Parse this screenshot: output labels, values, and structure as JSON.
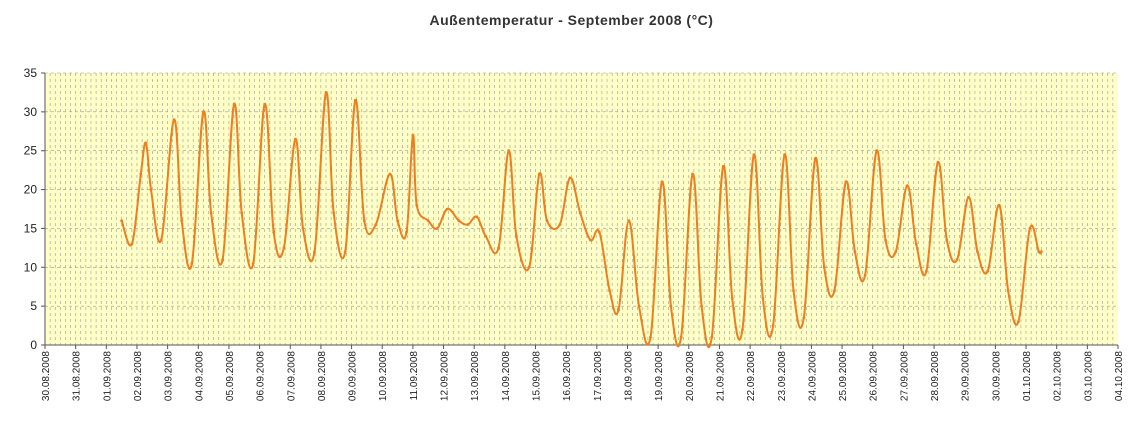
{
  "chart_data": {
    "type": "line",
    "title": "Außentemperatur - September 2008 (°C)",
    "xlabel": "",
    "ylabel": "",
    "ylim": [
      0,
      35
    ],
    "yticks": [
      0,
      5,
      10,
      15,
      20,
      25,
      30,
      35
    ],
    "grid": true,
    "legend": "none",
    "colors": {
      "plot_bg": "#ffffc8",
      "line": "#f07d1e",
      "grid": "#999999"
    },
    "categories": [
      "30.08.2008",
      "31.08.2008",
      "01.09.2008",
      "02.09.2008",
      "03.09.2008",
      "04.09.2008",
      "05.09.2008",
      "06.09.2008",
      "07.09.2008",
      "08.09.2008",
      "09.09.2008",
      "10.09.2008",
      "11.09.2008",
      "12.09.2008",
      "13.09.2008",
      "14.09.2008",
      "15.09.2008",
      "16.09.2008",
      "17.09.2008",
      "18.09.2008",
      "19.09.2008",
      "20.09.2008",
      "21.09.2008",
      "22.09.2008",
      "23.09.2008",
      "24.09.2008",
      "25.09.2008",
      "26.09.2008",
      "27.09.2008",
      "28.09.2008",
      "29.09.2008",
      "30.09.2008",
      "01.10.2008",
      "02.10.2008",
      "03.10.2008",
      "04.10.2008"
    ],
    "series": [
      {
        "points": [
          [
            "01.09.2008 12:00",
            16.0
          ],
          [
            "01.09.2008 20:00",
            13.0
          ],
          [
            "02.09.2008 03:00",
            22.0
          ],
          [
            "02.09.2008 07:00",
            26.0
          ],
          [
            "02.09.2008 11:00",
            20.0
          ],
          [
            "02.09.2008 19:00",
            13.5
          ],
          [
            "03.09.2008 05:00",
            29.0
          ],
          [
            "03.09.2008 11:00",
            16.0
          ],
          [
            "03.09.2008 19:00",
            10.5
          ],
          [
            "04.09.2008 04:00",
            30.0
          ],
          [
            "04.09.2008 10:00",
            17.0
          ],
          [
            "04.09.2008 19:00",
            11.0
          ],
          [
            "05.09.2008 04:00",
            31.0
          ],
          [
            "05.09.2008 10:00",
            17.0
          ],
          [
            "05.09.2008 19:00",
            10.5
          ],
          [
            "06.09.2008 04:00",
            31.0
          ],
          [
            "06.09.2008 11:00",
            14.5
          ],
          [
            "06.09.2008 19:00",
            12.5
          ],
          [
            "07.09.2008 04:00",
            26.5
          ],
          [
            "07.09.2008 10:00",
            15.0
          ],
          [
            "07.09.2008 19:00",
            12.0
          ],
          [
            "08.09.2008 04:00",
            32.5
          ],
          [
            "08.09.2008 10:00",
            17.0
          ],
          [
            "08.09.2008 19:00",
            12.0
          ],
          [
            "09.09.2008 03:00",
            31.5
          ],
          [
            "09.09.2008 10:00",
            16.0
          ],
          [
            "09.09.2008 19:00",
            15.5
          ],
          [
            "10.09.2008 06:00",
            22.0
          ],
          [
            "10.09.2008 12:00",
            16.0
          ],
          [
            "10.09.2008 19:00",
            14.5
          ],
          [
            "11.09.2008 00:00",
            27.0
          ],
          [
            "11.09.2008 03:00",
            18.0
          ],
          [
            "11.09.2008 12:00",
            16.0
          ],
          [
            "11.09.2008 19:00",
            15.0
          ],
          [
            "12.09.2008 03:00",
            17.5
          ],
          [
            "12.09.2008 12:00",
            16.0
          ],
          [
            "12.09.2008 19:00",
            15.5
          ],
          [
            "13.09.2008 02:00",
            16.5
          ],
          [
            "13.09.2008 09:00",
            14.0
          ],
          [
            "13.09.2008 19:00",
            12.5
          ],
          [
            "14.09.2008 03:00",
            25.0
          ],
          [
            "14.09.2008 09:00",
            14.0
          ],
          [
            "14.09.2008 19:00",
            10.0
          ],
          [
            "15.09.2008 03:00",
            22.0
          ],
          [
            "15.09.2008 09:00",
            16.0
          ],
          [
            "15.09.2008 19:00",
            15.5
          ],
          [
            "16.09.2008 03:00",
            21.5
          ],
          [
            "16.09.2008 11:00",
            17.0
          ],
          [
            "16.09.2008 19:00",
            13.5
          ],
          [
            "17.09.2008 02:00",
            14.5
          ],
          [
            "17.09.2008 10:00",
            7.0
          ],
          [
            "17.09.2008 17:00",
            4.5
          ],
          [
            "18.09.2008 01:00",
            16.0
          ],
          [
            "18.09.2008 09:00",
            5.0
          ],
          [
            "18.09.2008 18:00",
            1.0
          ],
          [
            "19.09.2008 03:00",
            21.0
          ],
          [
            "19.09.2008 10:00",
            5.0
          ],
          [
            "19.09.2008 18:00",
            1.0
          ],
          [
            "20.09.2008 03:00",
            22.0
          ],
          [
            "20.09.2008 10:00",
            5.0
          ],
          [
            "20.09.2008 18:00",
            1.0
          ],
          [
            "21.09.2008 03:00",
            23.0
          ],
          [
            "21.09.2008 10:00",
            6.0
          ],
          [
            "21.09.2008 18:00",
            2.0
          ],
          [
            "22.09.2008 03:00",
            24.5
          ],
          [
            "22.09.2008 10:00",
            6.0
          ],
          [
            "22.09.2008 18:00",
            2.5
          ],
          [
            "23.09.2008 03:00",
            24.5
          ],
          [
            "23.09.2008 10:00",
            7.0
          ],
          [
            "23.09.2008 18:00",
            3.5
          ],
          [
            "24.09.2008 03:00",
            24.0
          ],
          [
            "24.09.2008 10:00",
            10.0
          ],
          [
            "24.09.2008 18:00",
            7.0
          ],
          [
            "25.09.2008 03:00",
            21.0
          ],
          [
            "25.09.2008 10:00",
            12.0
          ],
          [
            "25.09.2008 18:00",
            9.0
          ],
          [
            "26.09.2008 03:00",
            25.0
          ],
          [
            "26.09.2008 10:00",
            13.5
          ],
          [
            "26.09.2008 18:00",
            12.0
          ],
          [
            "27.09.2008 03:00",
            20.5
          ],
          [
            "27.09.2008 10:00",
            13.0
          ],
          [
            "27.09.2008 18:00",
            9.5
          ],
          [
            "28.09.2008 03:00",
            23.5
          ],
          [
            "28.09.2008 10:00",
            13.5
          ],
          [
            "28.09.2008 18:00",
            11.0
          ],
          [
            "29.09.2008 03:00",
            19.0
          ],
          [
            "29.09.2008 10:00",
            12.0
          ],
          [
            "29.09.2008 18:00",
            9.5
          ],
          [
            "30.09.2008 03:00",
            18.0
          ],
          [
            "30.09.2008 10:00",
            7.0
          ],
          [
            "30.09.2008 18:00",
            3.0
          ],
          [
            "01.10.2008 03:00",
            15.0
          ],
          [
            "01.10.2008 10:00",
            12.0
          ],
          [
            "01.10.2008 12:00",
            12.0
          ]
        ]
      }
    ]
  }
}
